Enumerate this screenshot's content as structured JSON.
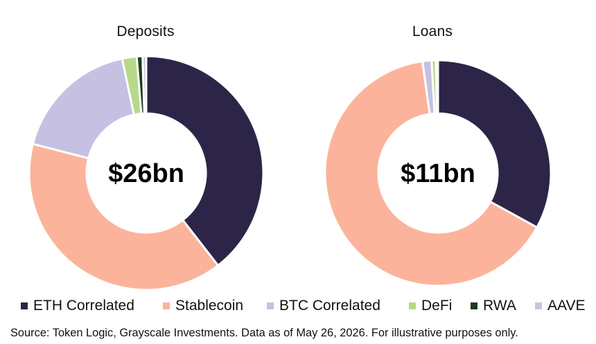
{
  "colors": {
    "ETH Correlated": "#2d2548",
    "Stablecoin": "#fbb49b",
    "BTC Correlated": "#c6c0e2",
    "DeFi": "#b6d98a",
    "RWA": "#1f3a1d",
    "AAVE": "#c9c5e0"
  },
  "chart_data": [
    {
      "type": "pie",
      "variant": "donut",
      "title": "Deposits",
      "center_label": "$26bn",
      "categories": [
        "ETH Correlated",
        "Stablecoin",
        "BTC Correlated",
        "DeFi",
        "RWA",
        "AAVE"
      ],
      "values": [
        39.5,
        39.5,
        17.7,
        2.0,
        0.8,
        0.5
      ],
      "unit": "%"
    },
    {
      "type": "pie",
      "variant": "donut",
      "title": "Loans",
      "center_label": "$11bn",
      "categories": [
        "ETH Correlated",
        "Stablecoin",
        "BTC Correlated",
        "DeFi",
        "RWA",
        "AAVE"
      ],
      "values": [
        33.0,
        64.8,
        1.3,
        0.6,
        0.0,
        0.3
      ],
      "unit": "%"
    }
  ],
  "legend": [
    "ETH Correlated",
    "Stablecoin",
    "BTC Correlated",
    "DeFi",
    "RWA",
    "AAVE"
  ],
  "source": "Source: Token Logic, Grayscale Investments. Data as of May 26, 2026. For illustrative purposes only."
}
